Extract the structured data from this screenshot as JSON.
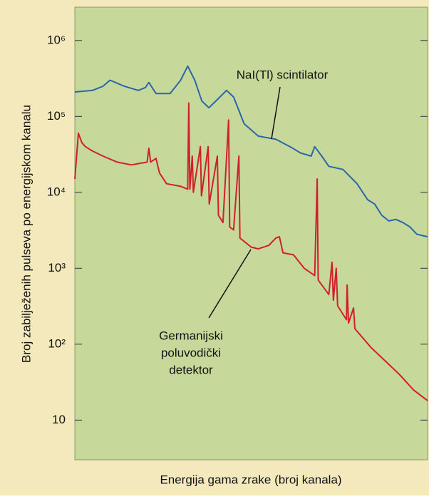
{
  "chart_data": {
    "type": "line",
    "ylabel": "Broj zabilježenih pulseva po energijskom kanalu",
    "xlabel": "Energija gama zrake (broj kanala)",
    "log_y": true,
    "xlim": [
      0,
      100
    ],
    "ylim": [
      3,
      2750000
    ],
    "yticks": [
      {
        "value": 1000000,
        "label": "10⁶"
      },
      {
        "value": 100000,
        "label": "10⁵"
      },
      {
        "value": 10000,
        "label": "10⁴"
      },
      {
        "value": 1000,
        "label": "10³"
      },
      {
        "value": 100,
        "label": "10²"
      },
      10
    ],
    "series": [
      {
        "name": "NaI(Tl) scintilator",
        "color": "#2a66a8",
        "x": [
          0,
          5,
          8,
          10,
          14,
          18,
          20,
          21,
          23,
          27,
          30,
          32,
          34,
          36,
          38,
          40,
          43,
          45,
          48,
          52,
          57,
          61,
          64,
          67,
          68,
          70,
          72,
          76,
          80,
          83,
          85,
          87,
          89,
          91,
          93,
          95,
          97,
          100
        ],
        "values": [
          210000,
          220000,
          250000,
          300000,
          250000,
          220000,
          240000,
          280000,
          200000,
          200000,
          300000,
          460000,
          300000,
          160000,
          130000,
          160000,
          220000,
          180000,
          80000,
          55000,
          50000,
          40000,
          33000,
          30000,
          40000,
          30000,
          22000,
          20000,
          13000,
          8000,
          7000,
          5000,
          4200,
          4400,
          4000,
          3500,
          2800,
          2600
        ]
      },
      {
        "name": "Germanijski poluvodički detektor",
        "color": "#d21f2e",
        "x": [
          0,
          1,
          2,
          3,
          5,
          8,
          12,
          16,
          20.5,
          21,
          21.5,
          23,
          24,
          26,
          30,
          32,
          32.3,
          32.6,
          33.3,
          33.6,
          35.6,
          35.9,
          37.8,
          38.1,
          40.4,
          40.7,
          42,
          43.6,
          43.9,
          45,
          46.5,
          46.8,
          50,
          52,
          55,
          57,
          58,
          59,
          62,
          65,
          68,
          68.7,
          69,
          72,
          72.9,
          73.3,
          74.1,
          74.5,
          77,
          77.2,
          77.6,
          79,
          79.4,
          84,
          88,
          92,
          96,
          100
        ],
        "values": [
          15000,
          60000,
          45000,
          40000,
          35000,
          30000,
          25000,
          23000,
          25000,
          38000,
          25000,
          28000,
          18000,
          13000,
          12000,
          11000,
          150000,
          11000,
          30000,
          10000,
          40000,
          9000,
          40000,
          7000,
          30000,
          5000,
          4000,
          90000,
          3500,
          3200,
          30000,
          2500,
          1900,
          1800,
          2000,
          2500,
          2600,
          1600,
          1500,
          1000,
          800,
          15000,
          700,
          450,
          1200,
          380,
          1000,
          320,
          210,
          600,
          190,
          300,
          160,
          90,
          60,
          40,
          25,
          18
        ]
      }
    ],
    "annotations": [
      {
        "lines": [
          "NaI(Tl) scintilator"
        ]
      },
      {
        "lines": [
          "Germanijski",
          "poluvodički",
          "detektor"
        ]
      }
    ]
  }
}
